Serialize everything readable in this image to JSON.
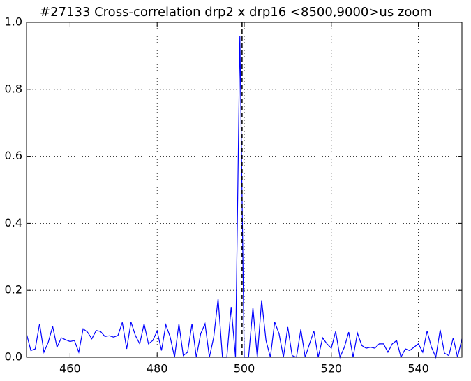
{
  "chart_data": {
    "type": "line",
    "title": "#27133 Cross-correlation drp2 x drp16 <8500,9000>us zoom",
    "x": [
      450,
      451,
      452,
      453,
      454,
      455,
      456,
      457,
      458,
      459,
      460,
      461,
      462,
      463,
      464,
      465,
      466,
      467,
      468,
      469,
      470,
      471,
      472,
      473,
      474,
      475,
      476,
      477,
      478,
      479,
      480,
      481,
      482,
      483,
      484,
      485,
      486,
      487,
      488,
      489,
      490,
      491,
      492,
      493,
      494,
      495,
      496,
      497,
      498,
      499,
      500,
      501,
      502,
      503,
      504,
      505,
      506,
      507,
      508,
      509,
      510,
      511,
      512,
      513,
      514,
      515,
      516,
      517,
      518,
      519,
      520,
      521,
      522,
      523,
      524,
      525,
      526,
      527,
      528,
      529,
      530,
      531,
      532,
      533,
      534,
      535,
      536,
      537,
      538,
      539,
      540,
      541,
      542,
      543,
      544,
      545,
      546,
      547,
      548,
      549,
      550
    ],
    "values": [
      0.07,
      0.02,
      0.025,
      0.1,
      0.015,
      0.045,
      0.092,
      0.03,
      0.058,
      0.052,
      0.047,
      0.05,
      0.015,
      0.085,
      0.075,
      0.055,
      0.08,
      0.077,
      0.062,
      0.064,
      0.06,
      0.065,
      0.104,
      0.025,
      0.105,
      0.065,
      0.04,
      0.1,
      0.04,
      0.05,
      0.078,
      0.02,
      0.097,
      0.06,
      0.0,
      0.1,
      0.005,
      0.015,
      0.1,
      0.0,
      0.07,
      0.1,
      0.0,
      0.06,
      0.175,
      0.0,
      0.0,
      0.15,
      0.0,
      0.96,
      0.0,
      0.0,
      0.148,
      0.0,
      0.17,
      0.05,
      0.0,
      0.105,
      0.07,
      0.0,
      0.09,
      0.005,
      0.0,
      0.083,
      0.0,
      0.04,
      0.078,
      0.0,
      0.058,
      0.04,
      0.027,
      0.077,
      0.0,
      0.03,
      0.075,
      0.0,
      0.072,
      0.035,
      0.027,
      0.03,
      0.027,
      0.04,
      0.04,
      0.015,
      0.04,
      0.05,
      0.0,
      0.025,
      0.02,
      0.03,
      0.04,
      0.015,
      0.078,
      0.03,
      0.0,
      0.082,
      0.012,
      0.005,
      0.058,
      0.0,
      0.055
    ],
    "color": "#0000ff",
    "vline": 499.5,
    "vline_color": "#000000",
    "xlim": [
      450,
      550
    ],
    "xticks": [
      460,
      480,
      500,
      520,
      540
    ],
    "ylim": [
      0,
      1
    ],
    "yticks": [
      {
        "value": 0,
        "label": "0.0"
      },
      0.2,
      0.4,
      0.6,
      0.8,
      {
        "value": 1,
        "label": "1.0"
      }
    ],
    "grid": true
  }
}
